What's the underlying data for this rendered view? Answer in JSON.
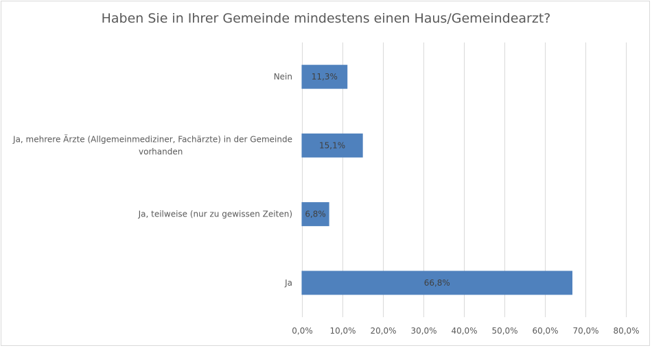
{
  "chart_data": {
    "type": "bar",
    "orientation": "horizontal",
    "title": "Haben Sie in Ihrer Gemeinde mindestens einen Haus/Gemeindearzt?",
    "categories": [
      [
        "Nein"
      ],
      [
        "Ja, mehrere Ärzte (Allgemeinmediziner, Fachärzte) in der Gemeinde",
        "vorhanden"
      ],
      [
        "Ja, teilweise (nur zu gewissen Zeiten)"
      ],
      [
        "Ja"
      ]
    ],
    "values": [
      11.3,
      15.1,
      6.8,
      66.8
    ],
    "data_labels": [
      "11,3%",
      "15,1%",
      "6,8%",
      "66,8%"
    ],
    "xlim": [
      0,
      80
    ],
    "x_ticks": [
      "0,0%",
      "10,0%",
      "20,0%",
      "30,0%",
      "40,0%",
      "50,0%",
      "60,0%",
      "70,0%",
      "80,0%"
    ],
    "grid": "vertical",
    "bar_color": "#4f81bd",
    "grid_color": "#d9d9d9"
  }
}
